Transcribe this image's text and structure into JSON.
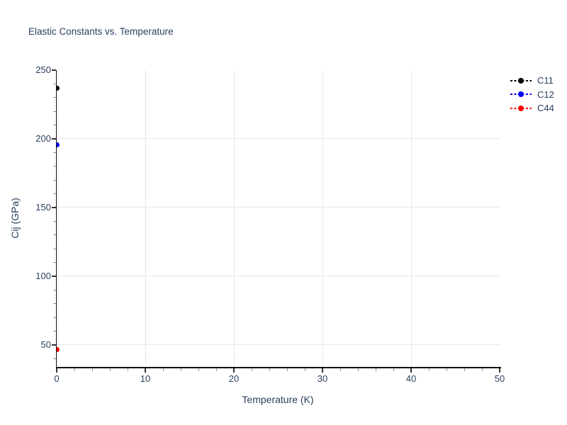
{
  "chart_data": {
    "type": "scatter",
    "title": "Elastic Constants vs. Temperature",
    "xlabel": "Temperature (K)",
    "ylabel": "Cij (GPa)",
    "xlim": [
      0,
      50
    ],
    "ylim": [
      34,
      250
    ],
    "x_ticks": [
      0,
      10,
      20,
      30,
      40,
      50
    ],
    "y_ticks": [
      50,
      100,
      150,
      200,
      250
    ],
    "x_minor_tick_step": 2,
    "y_minor_tick_step": 10,
    "x_gridlines": [
      10,
      20,
      30,
      40
    ],
    "y_gridlines": [
      50,
      100,
      150,
      200
    ],
    "grid": true,
    "legend_position": "outside-top-right",
    "series": [
      {
        "name": "C11",
        "color": "#000000",
        "line_style": "dashed",
        "marker": "circle",
        "x": [
          0
        ],
        "y": [
          237
        ]
      },
      {
        "name": "C12",
        "color": "#0000ff",
        "line_style": "dashed",
        "marker": "circle",
        "x": [
          0
        ],
        "y": [
          195.5
        ]
      },
      {
        "name": "C44",
        "color": "#ff0000",
        "line_style": "dashed",
        "marker": "circle",
        "x": [
          0
        ],
        "y": [
          46.5
        ]
      }
    ]
  },
  "colors": {
    "text": "#2a3f5f",
    "axis_line": "#111111",
    "grid": "#e6e6e6",
    "major_tick": "#333333",
    "minor_tick": "#999999",
    "background": "#ffffff"
  }
}
